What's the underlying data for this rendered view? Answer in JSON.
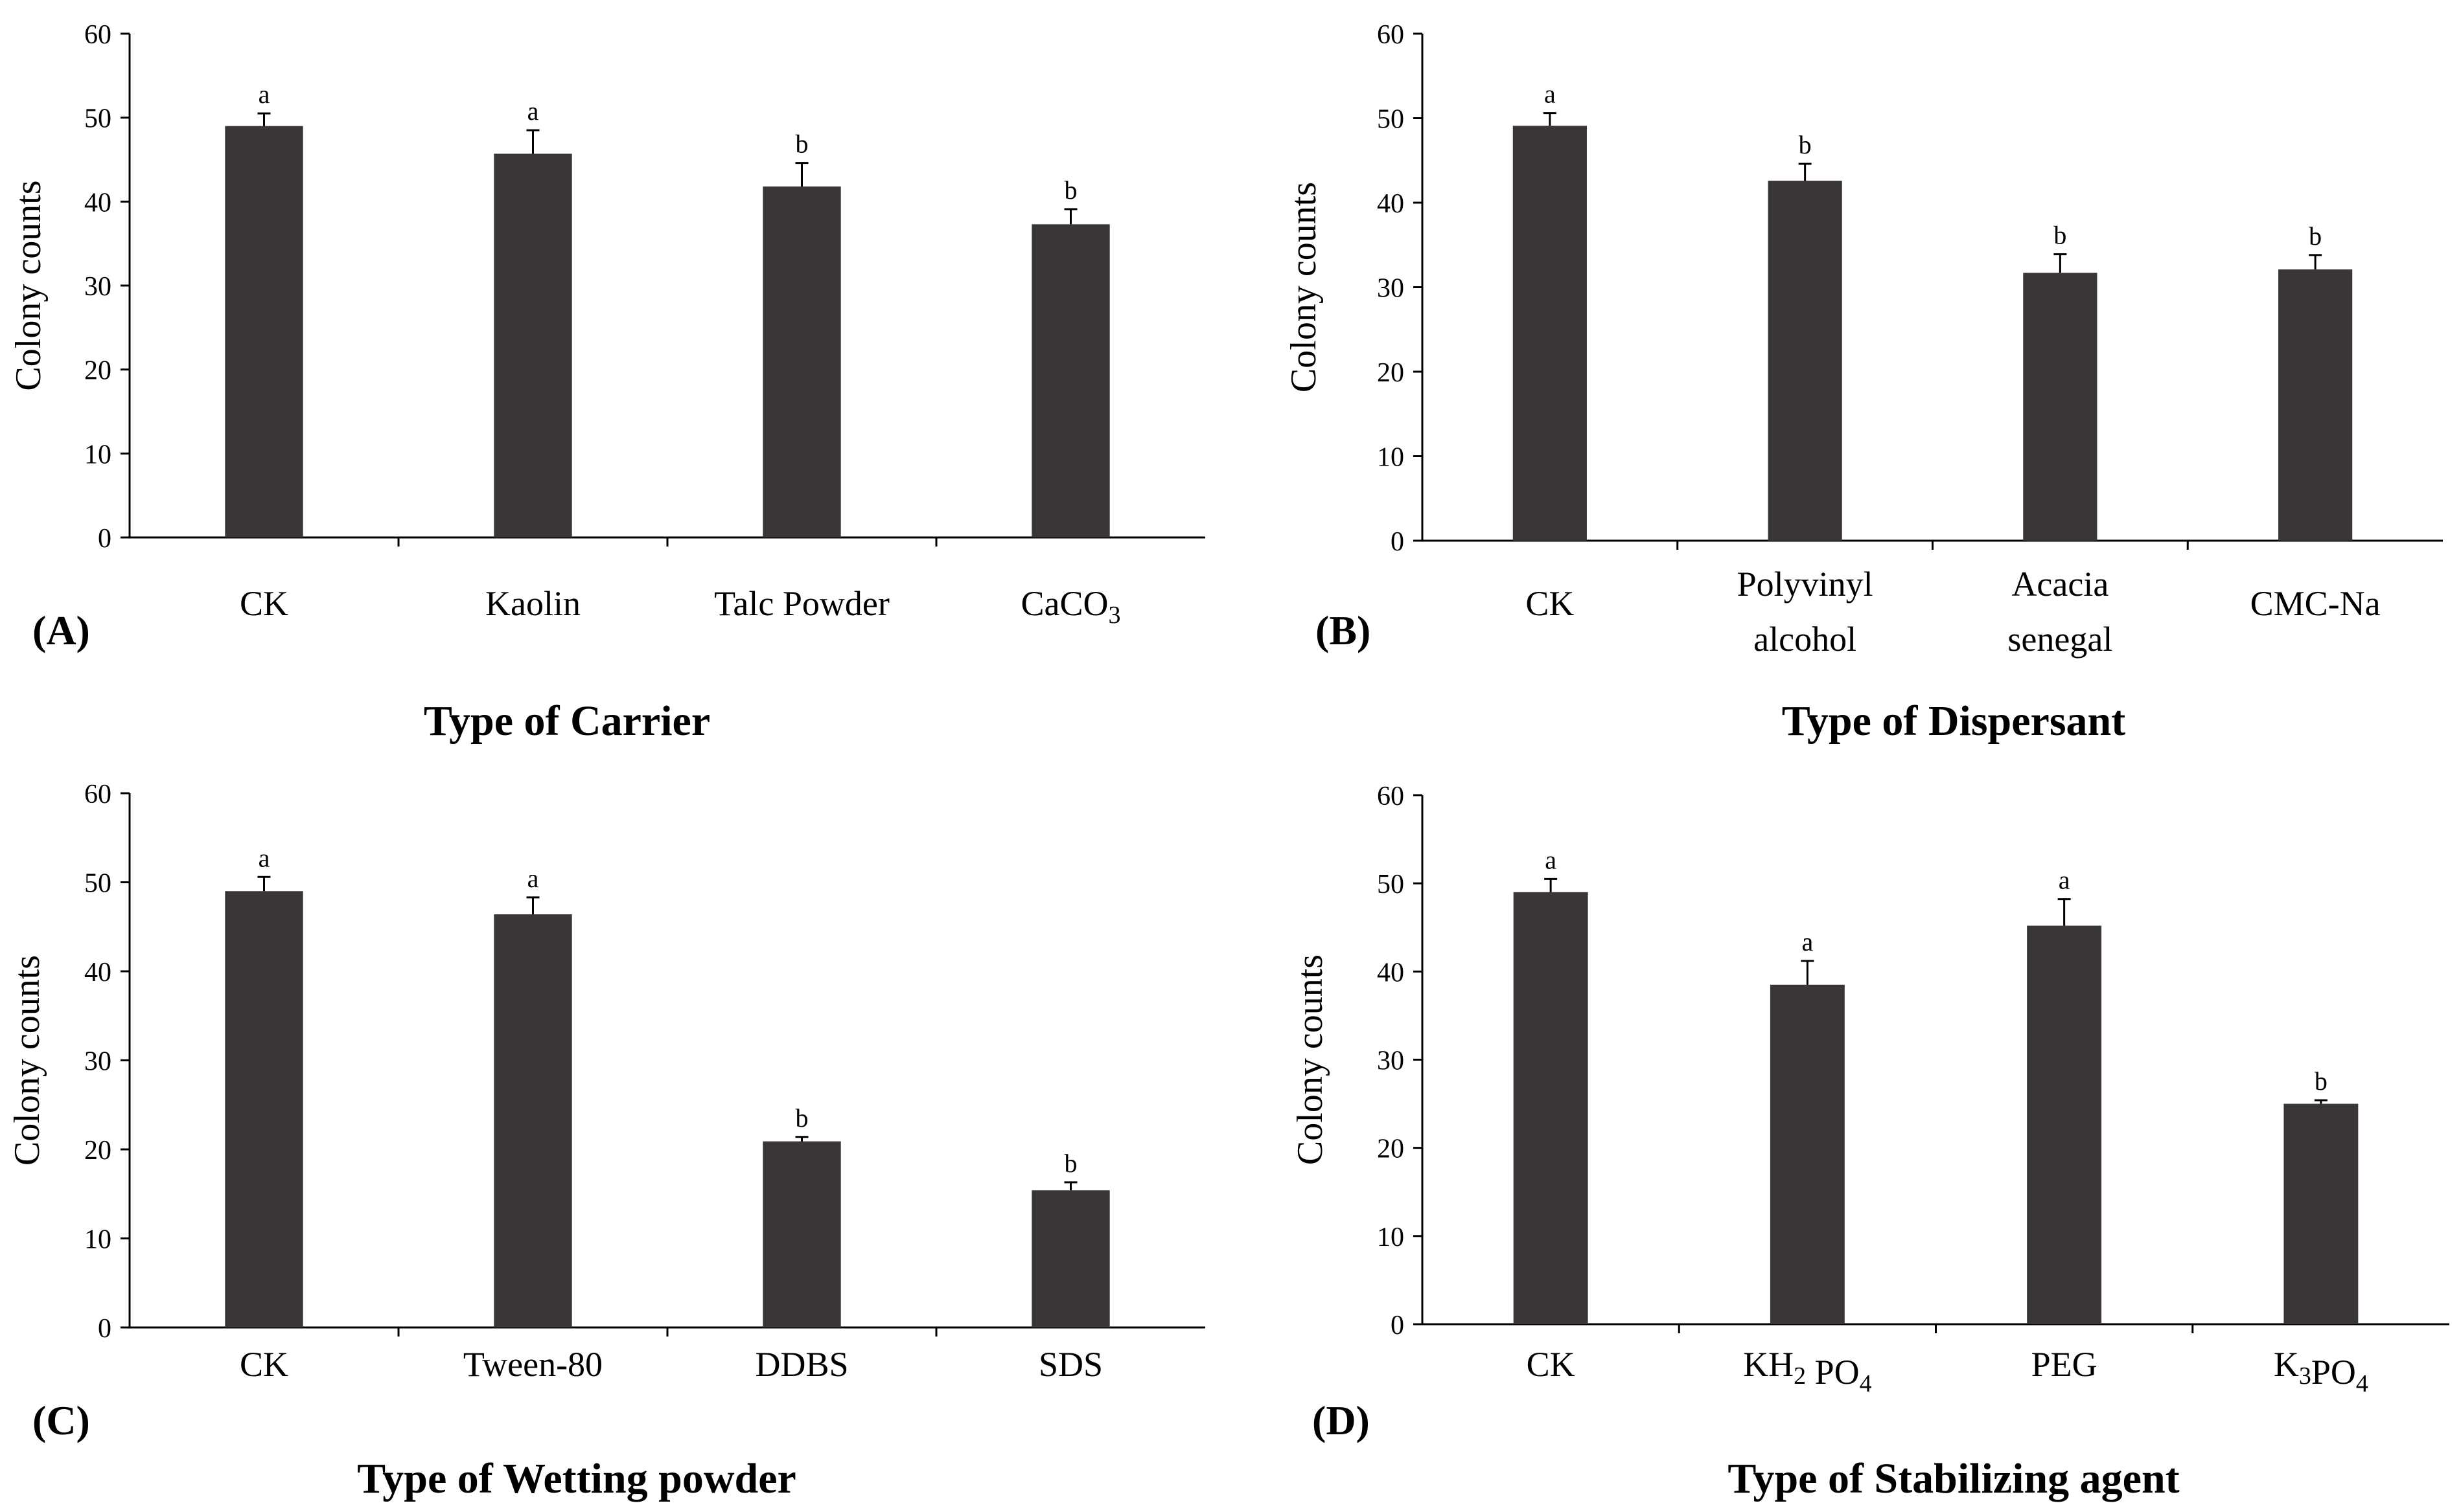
{
  "colors": {
    "bar": "#3a3638",
    "axis": "#000000",
    "background": "#ffffff"
  },
  "chart_data": [
    {
      "type": "bar",
      "panel": "(A)",
      "xlabel": "Type of Carrier",
      "ylabel": "Colony counts",
      "ylim": [
        0,
        60
      ],
      "yticks": [
        "0",
        "10",
        "20",
        "30",
        "40",
        "50",
        "60"
      ],
      "categories": [
        "CK",
        "Kaolin",
        "Talc Powder",
        "CaCO3"
      ],
      "values": [
        49,
        45.7,
        41.8,
        37.3
      ],
      "errors": [
        1.5,
        2.8,
        2.8,
        1.8
      ],
      "significance": [
        "a",
        "a",
        "b",
        "b"
      ]
    },
    {
      "type": "bar",
      "panel": "(B)",
      "xlabel": "Type of Dispersant",
      "ylabel": "Colony counts",
      "ylim": [
        0,
        60
      ],
      "yticks": [
        "0",
        "10",
        "20",
        "30",
        "40",
        "50",
        "60"
      ],
      "categories": [
        "CK",
        "Polyvinyl alcohol",
        "Acacia senegal",
        "CMC-Na"
      ],
      "values": [
        49.1,
        42.6,
        31.7,
        32.1
      ],
      "errors": [
        1.5,
        2.0,
        2.2,
        1.7
      ],
      "significance": [
        "a",
        "b",
        "b",
        "b"
      ]
    },
    {
      "type": "bar",
      "panel": "(C)",
      "xlabel": "Type of Wetting powder",
      "ylabel": "Colony counts",
      "ylim": [
        0,
        60
      ],
      "yticks": [
        "0",
        "10",
        "20",
        "30",
        "40",
        "50",
        "60"
      ],
      "categories": [
        "CK",
        "Tween-80",
        "DDBS",
        "SDS"
      ],
      "values": [
        49,
        46.4,
        20.9,
        15.4
      ],
      "errors": [
        1.6,
        1.9,
        0.5,
        0.9
      ],
      "significance": [
        "a",
        "a",
        "b",
        "b"
      ]
    },
    {
      "type": "bar",
      "panel": "(D)",
      "xlabel": "Type of Stabilizing agent",
      "ylabel": "Colony counts",
      "ylim": [
        0,
        60
      ],
      "yticks": [
        "0",
        "10",
        "20",
        "30",
        "40",
        "50",
        "60"
      ],
      "categories": [
        "CK",
        "KH2 PO4",
        "PEG",
        "K3PO4"
      ],
      "values": [
        49,
        38.5,
        45.2,
        25
      ],
      "errors": [
        1.5,
        2.7,
        3.0,
        0.4
      ],
      "significance": [
        "a",
        "a",
        "a",
        "b"
      ]
    }
  ]
}
